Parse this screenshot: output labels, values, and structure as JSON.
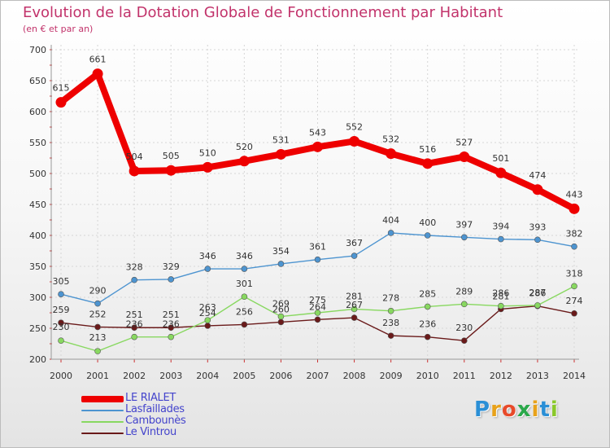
{
  "header": {
    "title": "Evolution de la Dotation Globale de Fonctionnement par Habitant",
    "subtitle": "(en € et par an)"
  },
  "brand": {
    "letters": [
      "P",
      "r",
      "o",
      "x",
      "i",
      "t",
      "i"
    ],
    "colors": [
      "#2a8fd6",
      "#e8a21a",
      "#e84a2a",
      "#2aa84a",
      "#e8a21a",
      "#2a8fd6",
      "#8ac82a"
    ]
  },
  "chart_data": {
    "type": "line",
    "title": "Evolution de la Dotation Globale de Fonctionnement par Habitant",
    "subtitle": "(en € et par an)",
    "x": [
      "2000",
      "2001",
      "2002",
      "2003",
      "2004",
      "2005",
      "2006",
      "2007",
      "2008",
      "2009",
      "2010",
      "2011",
      "2012",
      "2013",
      "2014"
    ],
    "ylim": [
      200,
      700
    ],
    "yticks": [
      "200",
      "250",
      "300",
      "350",
      "400",
      "450",
      "500",
      "550",
      "600",
      "650",
      "700"
    ],
    "grid": true,
    "legend": "bottom-left",
    "series": [
      {
        "name": "LE RIALET",
        "color": "#ee0000",
        "values": [
          615,
          661,
          504,
          505,
          510,
          520,
          531,
          543,
          552,
          532,
          516,
          527,
          501,
          474,
          443
        ],
        "labels": [
          "615",
          "661",
          "504",
          "505",
          "510",
          "520",
          "531",
          "543",
          "552",
          "532",
          "516",
          "527",
          "501",
          "474",
          "443"
        ]
      },
      {
        "name": "Lasfaillades",
        "color": "#4d94d0",
        "values": [
          305,
          290,
          328,
          329,
          346,
          346,
          354,
          361,
          367,
          404,
          400,
          397,
          394,
          393,
          382
        ],
        "labels": [
          "305",
          "290",
          "328",
          "329",
          "346",
          "346",
          "354",
          "361",
          "367",
          "404",
          "400",
          "397",
          "394",
          "393",
          "382"
        ]
      },
      {
        "name": "Cambounès",
        "color": "#88d860",
        "values": [
          230,
          213,
          236,
          236,
          263,
          301,
          269,
          275,
          281,
          278,
          285,
          289,
          286,
          287,
          318
        ],
        "labels": [
          "230",
          "213",
          "236",
          "236",
          "263",
          "301",
          "269",
          "275",
          "281",
          "278",
          "285",
          "289",
          "286",
          "287",
          "318"
        ]
      },
      {
        "name": "Le Vintrou",
        "color": "#6a1a1a",
        "values": [
          259,
          252,
          251,
          251,
          254,
          256,
          260,
          264,
          267,
          238,
          236,
          230,
          281,
          286,
          274
        ],
        "labels": [
          "259",
          "252",
          "251",
          "251",
          "254",
          "256",
          "260",
          "264",
          "267",
          "238",
          "236",
          "230",
          "281",
          "286",
          "274"
        ]
      }
    ]
  }
}
